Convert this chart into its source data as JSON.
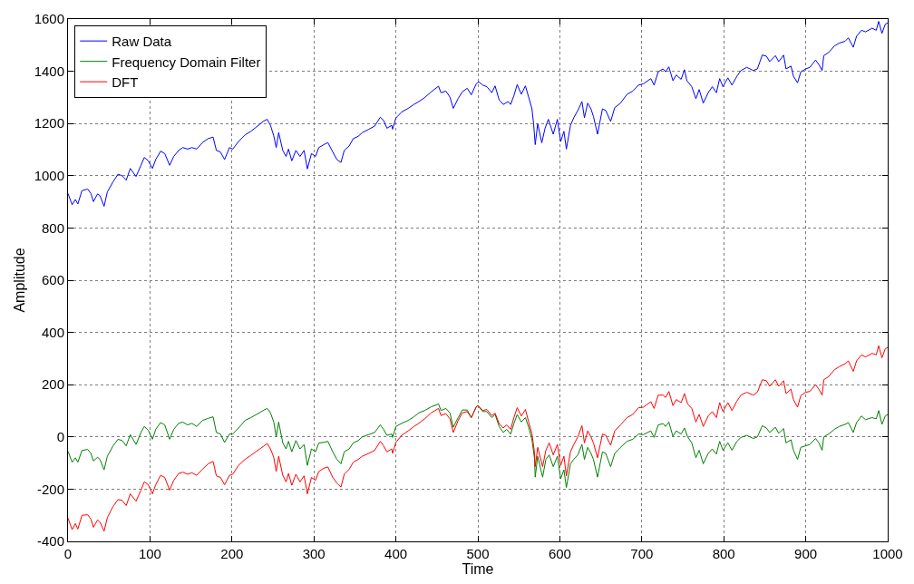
{
  "chart_data": {
    "type": "line",
    "xlabel": "Time",
    "ylabel": "Amplitude",
    "xlim": [
      0,
      1000
    ],
    "ylim": [
      -400,
      1600
    ],
    "xticks": [
      0,
      100,
      200,
      300,
      400,
      500,
      600,
      700,
      800,
      900,
      1000
    ],
    "yticks": [
      -400,
      -200,
      0,
      200,
      400,
      600,
      800,
      1000,
      1200,
      1400,
      1600
    ],
    "grid": true,
    "legend": "top left",
    "line_style": "solid",
    "series": [
      {
        "name": "Raw Data",
        "color": "#0000ff",
        "x": [
          0,
          5,
          9,
          12,
          17,
          24,
          28,
          31,
          36,
          39,
          44,
          48,
          55,
          61,
          66,
          71,
          76,
          83,
          89,
          93,
          98,
          103,
          107,
          113,
          118,
          124,
          129,
          135,
          140,
          146,
          151,
          157,
          164,
          171,
          177,
          181,
          186,
          191,
          197,
          201,
          208,
          216,
          223,
          230,
          238,
          243,
          247,
          251,
          254,
          257,
          262,
          266,
          269,
          273,
          278,
          283,
          288,
          292,
          297,
          302,
          306,
          312,
          317,
          323,
          328,
          333,
          337,
          343,
          348,
          354,
          359,
          367,
          374,
          381,
          385,
          389,
          395,
          396,
          400,
          407,
          415,
          422,
          428,
          435,
          443,
          452,
          455,
          461,
          466,
          470,
          476,
          481,
          487,
          492,
          498,
          501,
          506,
          511,
          517,
          521,
          526,
          531,
          537,
          540,
          544,
          548,
          553,
          558,
          562,
          566,
          568,
          570,
          573,
          578,
          582,
          586,
          592,
          597,
          601,
          605,
          608,
          613,
          617,
          622,
          627,
          630,
          634,
          638,
          641,
          646,
          652,
          656,
          662,
          667,
          674,
          682,
          689,
          696,
          702,
          711,
          715,
          720,
          726,
          729,
          733,
          738,
          742,
          748,
          752,
          755,
          761,
          766,
          770,
          775,
          781,
          786,
          791,
          795,
          799,
          805,
          810,
          816,
          821,
          828,
          836,
          841,
          847,
          852,
          856,
          863,
          867,
          873,
          876,
          882,
          885,
          890,
          894,
          900,
          905,
          912,
          916,
          920,
          922,
          928,
          935,
          941,
          948,
          952,
          958,
          962,
          968,
          973,
          981,
          986,
          989,
          993,
          997,
          1000
        ],
        "values": [
          932,
          889,
          909,
          892,
          943,
          949,
          932,
          901,
          930,
          924,
          883,
          938,
          977,
          1006,
          1000,
          983,
          1028,
          997,
          1040,
          1070,
          1057,
          1028,
          1062,
          1094,
          1085,
          1040,
          1074,
          1097,
          1108,
          1102,
          1108,
          1102,
          1127,
          1142,
          1148,
          1097,
          1091,
          1062,
          1108,
          1102,
          1131,
          1156,
          1170,
          1187,
          1208,
          1216,
          1193,
          1153,
          1108,
          1165,
          1097,
          1074,
          1102,
          1057,
          1097,
          1074,
          1097,
          1026,
          1085,
          1074,
          1108,
          1119,
          1127,
          1091,
          1062,
          1051,
          1097,
          1114,
          1142,
          1151,
          1165,
          1178,
          1190,
          1224,
          1212,
          1182,
          1193,
          1178,
          1221,
          1244,
          1258,
          1273,
          1284,
          1299,
          1321,
          1343,
          1318,
          1324,
          1301,
          1258,
          1296,
          1321,
          1335,
          1310,
          1352,
          1360,
          1347,
          1341,
          1318,
          1344,
          1290,
          1273,
          1284,
          1273,
          1307,
          1349,
          1312,
          1344,
          1301,
          1256,
          1199,
          1119,
          1199,
          1126,
          1182,
          1216,
          1159,
          1216,
          1131,
          1170,
          1102,
          1193,
          1222,
          1250,
          1284,
          1222,
          1278,
          1256,
          1227,
          1159,
          1256,
          1250,
          1208,
          1261,
          1278,
          1312,
          1324,
          1347,
          1352,
          1372,
          1347,
          1398,
          1409,
          1398,
          1417,
          1364,
          1386,
          1369,
          1406,
          1364,
          1341,
          1295,
          1330,
          1278,
          1318,
          1341,
          1318,
          1372,
          1341,
          1375,
          1347,
          1381,
          1403,
          1415,
          1403,
          1409,
          1462,
          1458,
          1437,
          1460,
          1437,
          1462,
          1409,
          1420,
          1381,
          1356,
          1398,
          1409,
          1415,
          1443,
          1426,
          1403,
          1460,
          1472,
          1497,
          1508,
          1515,
          1528,
          1492,
          1534,
          1557,
          1551,
          1565,
          1557,
          1591,
          1545,
          1580,
          1585
        ]
      },
      {
        "name": "Frequency Domain Filter",
        "color": "#008000",
        "x": [
          0,
          5,
          9,
          12,
          17,
          24,
          28,
          31,
          36,
          39,
          44,
          48,
          55,
          61,
          66,
          71,
          76,
          83,
          89,
          93,
          98,
          103,
          107,
          113,
          118,
          124,
          129,
          135,
          140,
          146,
          151,
          157,
          164,
          171,
          177,
          181,
          186,
          191,
          197,
          201,
          208,
          216,
          223,
          230,
          238,
          243,
          247,
          251,
          254,
          257,
          262,
          266,
          269,
          273,
          278,
          283,
          288,
          292,
          297,
          302,
          306,
          312,
          317,
          323,
          328,
          333,
          337,
          343,
          348,
          354,
          359,
          367,
          374,
          381,
          385,
          389,
          395,
          396,
          400,
          407,
          415,
          422,
          428,
          435,
          443,
          452,
          455,
          461,
          466,
          470,
          476,
          481,
          487,
          492,
          498,
          500,
          506,
          511,
          517,
          521,
          526,
          531,
          535,
          540,
          544,
          548,
          553,
          558,
          562,
          566,
          569,
          570,
          573,
          579,
          583,
          587,
          592,
          597,
          601,
          605,
          608,
          613,
          617,
          622,
          627,
          630,
          634,
          638,
          641,
          646,
          652,
          656,
          662,
          667,
          674,
          682,
          689,
          696,
          702,
          711,
          715,
          720,
          726,
          729,
          733,
          738,
          742,
          748,
          752,
          756,
          761,
          766,
          770,
          775,
          781,
          786,
          791,
          795,
          799,
          805,
          810,
          816,
          821,
          828,
          836,
          841,
          847,
          852,
          856,
          863,
          867,
          873,
          876,
          882,
          885,
          890,
          894,
          900,
          905,
          912,
          916,
          920,
          922,
          928,
          935,
          941,
          948,
          952,
          958,
          962,
          968,
          973,
          981,
          986,
          989,
          993,
          997,
          1000
        ],
        "values": [
          -55,
          -97,
          -80,
          -97,
          -52,
          -48,
          -63,
          -92,
          -78,
          -86,
          -126,
          -74,
          -34,
          -9,
          -14,
          -34,
          9,
          -29,
          17,
          40,
          25,
          -9,
          29,
          55,
          46,
          -9,
          29,
          52,
          57,
          46,
          52,
          40,
          63,
          71,
          77,
          17,
          11,
          -21,
          11,
          11,
          34,
          63,
          74,
          86,
          101,
          109,
          92,
          57,
          0,
          57,
          -23,
          -46,
          -17,
          -57,
          -14,
          -46,
          -29,
          -109,
          -46,
          -57,
          -23,
          -21,
          -17,
          -57,
          -86,
          -103,
          -57,
          -46,
          -23,
          -14,
          0,
          9,
          17,
          46,
          29,
          6,
          11,
          -2,
          40,
          52,
          63,
          77,
          92,
          101,
          115,
          126,
          101,
          109,
          92,
          37,
          74,
          103,
          103,
          74,
          115,
          120,
          97,
          97,
          74,
          86,
          40,
          17,
          29,
          11,
          51,
          86,
          57,
          74,
          37,
          -11,
          -80,
          -154,
          -74,
          -154,
          -86,
          -69,
          -114,
          -74,
          -160,
          -126,
          -194,
          -103,
          -86,
          -69,
          -29,
          -86,
          -40,
          -63,
          -86,
          -154,
          -57,
          -63,
          -114,
          -63,
          -40,
          -17,
          -9,
          11,
          9,
          23,
          -2,
          46,
          51,
          40,
          57,
          2,
          23,
          11,
          34,
          0,
          -23,
          -80,
          -51,
          -103,
          -63,
          -46,
          -66,
          -17,
          -51,
          -23,
          -51,
          -17,
          -2,
          6,
          -6,
          0,
          43,
          34,
          17,
          37,
          14,
          32,
          -23,
          -11,
          -51,
          -86,
          -40,
          -34,
          -29,
          -6,
          -23,
          -51,
          0,
          11,
          29,
          40,
          48,
          55,
          17,
          55,
          80,
          66,
          74,
          69,
          101,
          48,
          80,
          86
        ]
      },
      {
        "name": "DFT",
        "color": "#ff0000",
        "x": [
          0,
          5,
          9,
          12,
          17,
          24,
          28,
          31,
          36,
          39,
          44,
          48,
          55,
          61,
          66,
          71,
          76,
          83,
          89,
          93,
          98,
          103,
          107,
          113,
          118,
          124,
          129,
          135,
          140,
          146,
          151,
          157,
          164,
          171,
          177,
          181,
          186,
          191,
          197,
          201,
          208,
          216,
          223,
          230,
          238,
          243,
          247,
          251,
          254,
          257,
          262,
          266,
          269,
          273,
          278,
          283,
          288,
          292,
          297,
          302,
          306,
          312,
          317,
          323,
          328,
          333,
          337,
          343,
          348,
          354,
          359,
          367,
          374,
          381,
          385,
          389,
          395,
          396,
          400,
          407,
          415,
          422,
          428,
          435,
          443,
          452,
          455,
          461,
          466,
          470,
          476,
          481,
          487,
          492,
          498,
          500,
          506,
          511,
          517,
          521,
          526,
          531,
          535,
          540,
          544,
          548,
          553,
          558,
          562,
          566,
          569,
          570,
          573,
          579,
          583,
          587,
          592,
          597,
          601,
          605,
          608,
          613,
          617,
          622,
          627,
          630,
          634,
          638,
          641,
          646,
          652,
          656,
          662,
          667,
          674,
          682,
          689,
          696,
          702,
          711,
          715,
          720,
          726,
          729,
          733,
          738,
          742,
          748,
          752,
          756,
          761,
          766,
          770,
          775,
          781,
          786,
          791,
          795,
          799,
          805,
          810,
          816,
          821,
          828,
          836,
          841,
          847,
          852,
          856,
          863,
          867,
          873,
          876,
          882,
          885,
          890,
          894,
          900,
          905,
          912,
          916,
          920,
          922,
          928,
          935,
          941,
          948,
          952,
          958,
          962,
          968,
          973,
          981,
          986,
          989,
          993,
          997,
          1000
        ],
        "values": [
          -311,
          -355,
          -332,
          -353,
          -300,
          -298,
          -315,
          -346,
          -318,
          -326,
          -361,
          -309,
          -266,
          -240,
          -243,
          -263,
          -218,
          -246,
          -204,
          -172,
          -183,
          -218,
          -183,
          -147,
          -155,
          -204,
          -166,
          -140,
          -135,
          -143,
          -137,
          -147,
          -124,
          -103,
          -94,
          -149,
          -155,
          -183,
          -147,
          -143,
          -109,
          -86,
          -71,
          -55,
          -37,
          -25,
          -46,
          -78,
          -132,
          -74,
          -147,
          -172,
          -140,
          -185,
          -143,
          -172,
          -149,
          -218,
          -155,
          -166,
          -132,
          -120,
          -115,
          -155,
          -177,
          -192,
          -143,
          -124,
          -97,
          -86,
          -74,
          -63,
          -52,
          -17,
          -34,
          -57,
          -46,
          -63,
          -21,
          6,
          23,
          40,
          52,
          69,
          92,
          109,
          82,
          89,
          69,
          17,
          63,
          92,
          97,
          74,
          115,
          120,
          101,
          105,
          82,
          91,
          51,
          34,
          46,
          29,
          74,
          112,
          80,
          105,
          57,
          11,
          -57,
          -114,
          -40,
          -114,
          -51,
          -23,
          -69,
          -29,
          -109,
          -74,
          -149,
          -57,
          -29,
          0,
          43,
          -23,
          23,
          0,
          -23,
          -80,
          11,
          6,
          -32,
          23,
          46,
          74,
          86,
          112,
          114,
          135,
          109,
          160,
          160,
          151,
          174,
          120,
          143,
          131,
          166,
          126,
          109,
          57,
          86,
          40,
          80,
          97,
          74,
          131,
          97,
          131,
          101,
          137,
          160,
          171,
          160,
          171,
          219,
          215,
          194,
          219,
          194,
          215,
          166,
          183,
          143,
          114,
          158,
          171,
          174,
          200,
          183,
          160,
          219,
          231,
          257,
          269,
          280,
          291,
          251,
          291,
          314,
          306,
          320,
          314,
          349,
          303,
          337,
          343
        ]
      }
    ]
  }
}
